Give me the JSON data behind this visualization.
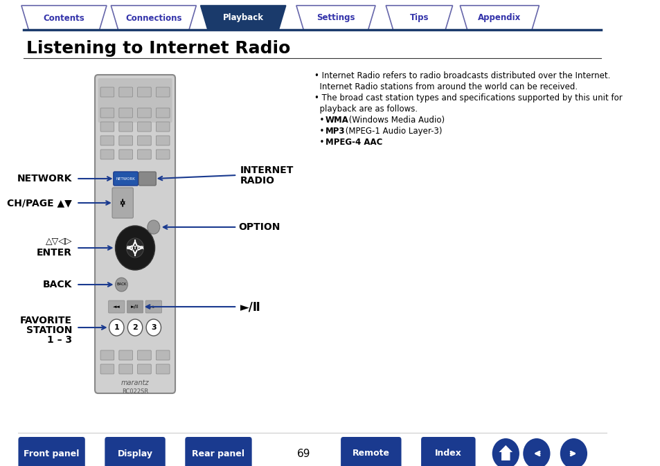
{
  "title": "Listening to Internet Radio",
  "tab_labels": [
    "Contents",
    "Connections",
    "Playback",
    "Settings",
    "Tips",
    "Appendix"
  ],
  "active_tab": 2,
  "tab_color_active": "#1a3a6b",
  "tab_color_inactive_bg": "#ffffff",
  "tab_color_inactive_border": "#6666aa",
  "tab_text_color_active": "#ffffff",
  "tab_text_color_inactive": "#3333aa",
  "nav_buttons": [
    "Front panel",
    "Display",
    "Rear panel",
    "Remote",
    "Index"
  ],
  "nav_button_color": "#1a3a8f",
  "nav_button_text_color": "#ffffff",
  "page_number": "69",
  "background_color": "#ffffff",
  "title_color": "#000000",
  "header_line_color": "#1a3a6b",
  "bullet_text": [
    "Internet Radio refers to radio broadcasts distributed over the Internet.\n  Internet Radio stations from around the world can be received.",
    "The broad cast station types and specifications supported by this unit for\n  playback are as follows.",
    "• WMA (Windows Media Audio)",
    "• MP3 (MPEG-1 Audio Layer-3)",
    "• MPEG-4 AAC"
  ],
  "labels_left": [
    "NETWORK",
    "CH/PAGE ▲▼",
    "△▽◁▷\nENTER",
    "BACK",
    "FAVORITE\nSTATION\n1 – 3"
  ],
  "labels_right": [
    "INTERNET\nRADIO",
    "OPTION",
    "►/Ⅱ"
  ],
  "remote_bg": "#e8e8e8",
  "remote_border": "#888888"
}
